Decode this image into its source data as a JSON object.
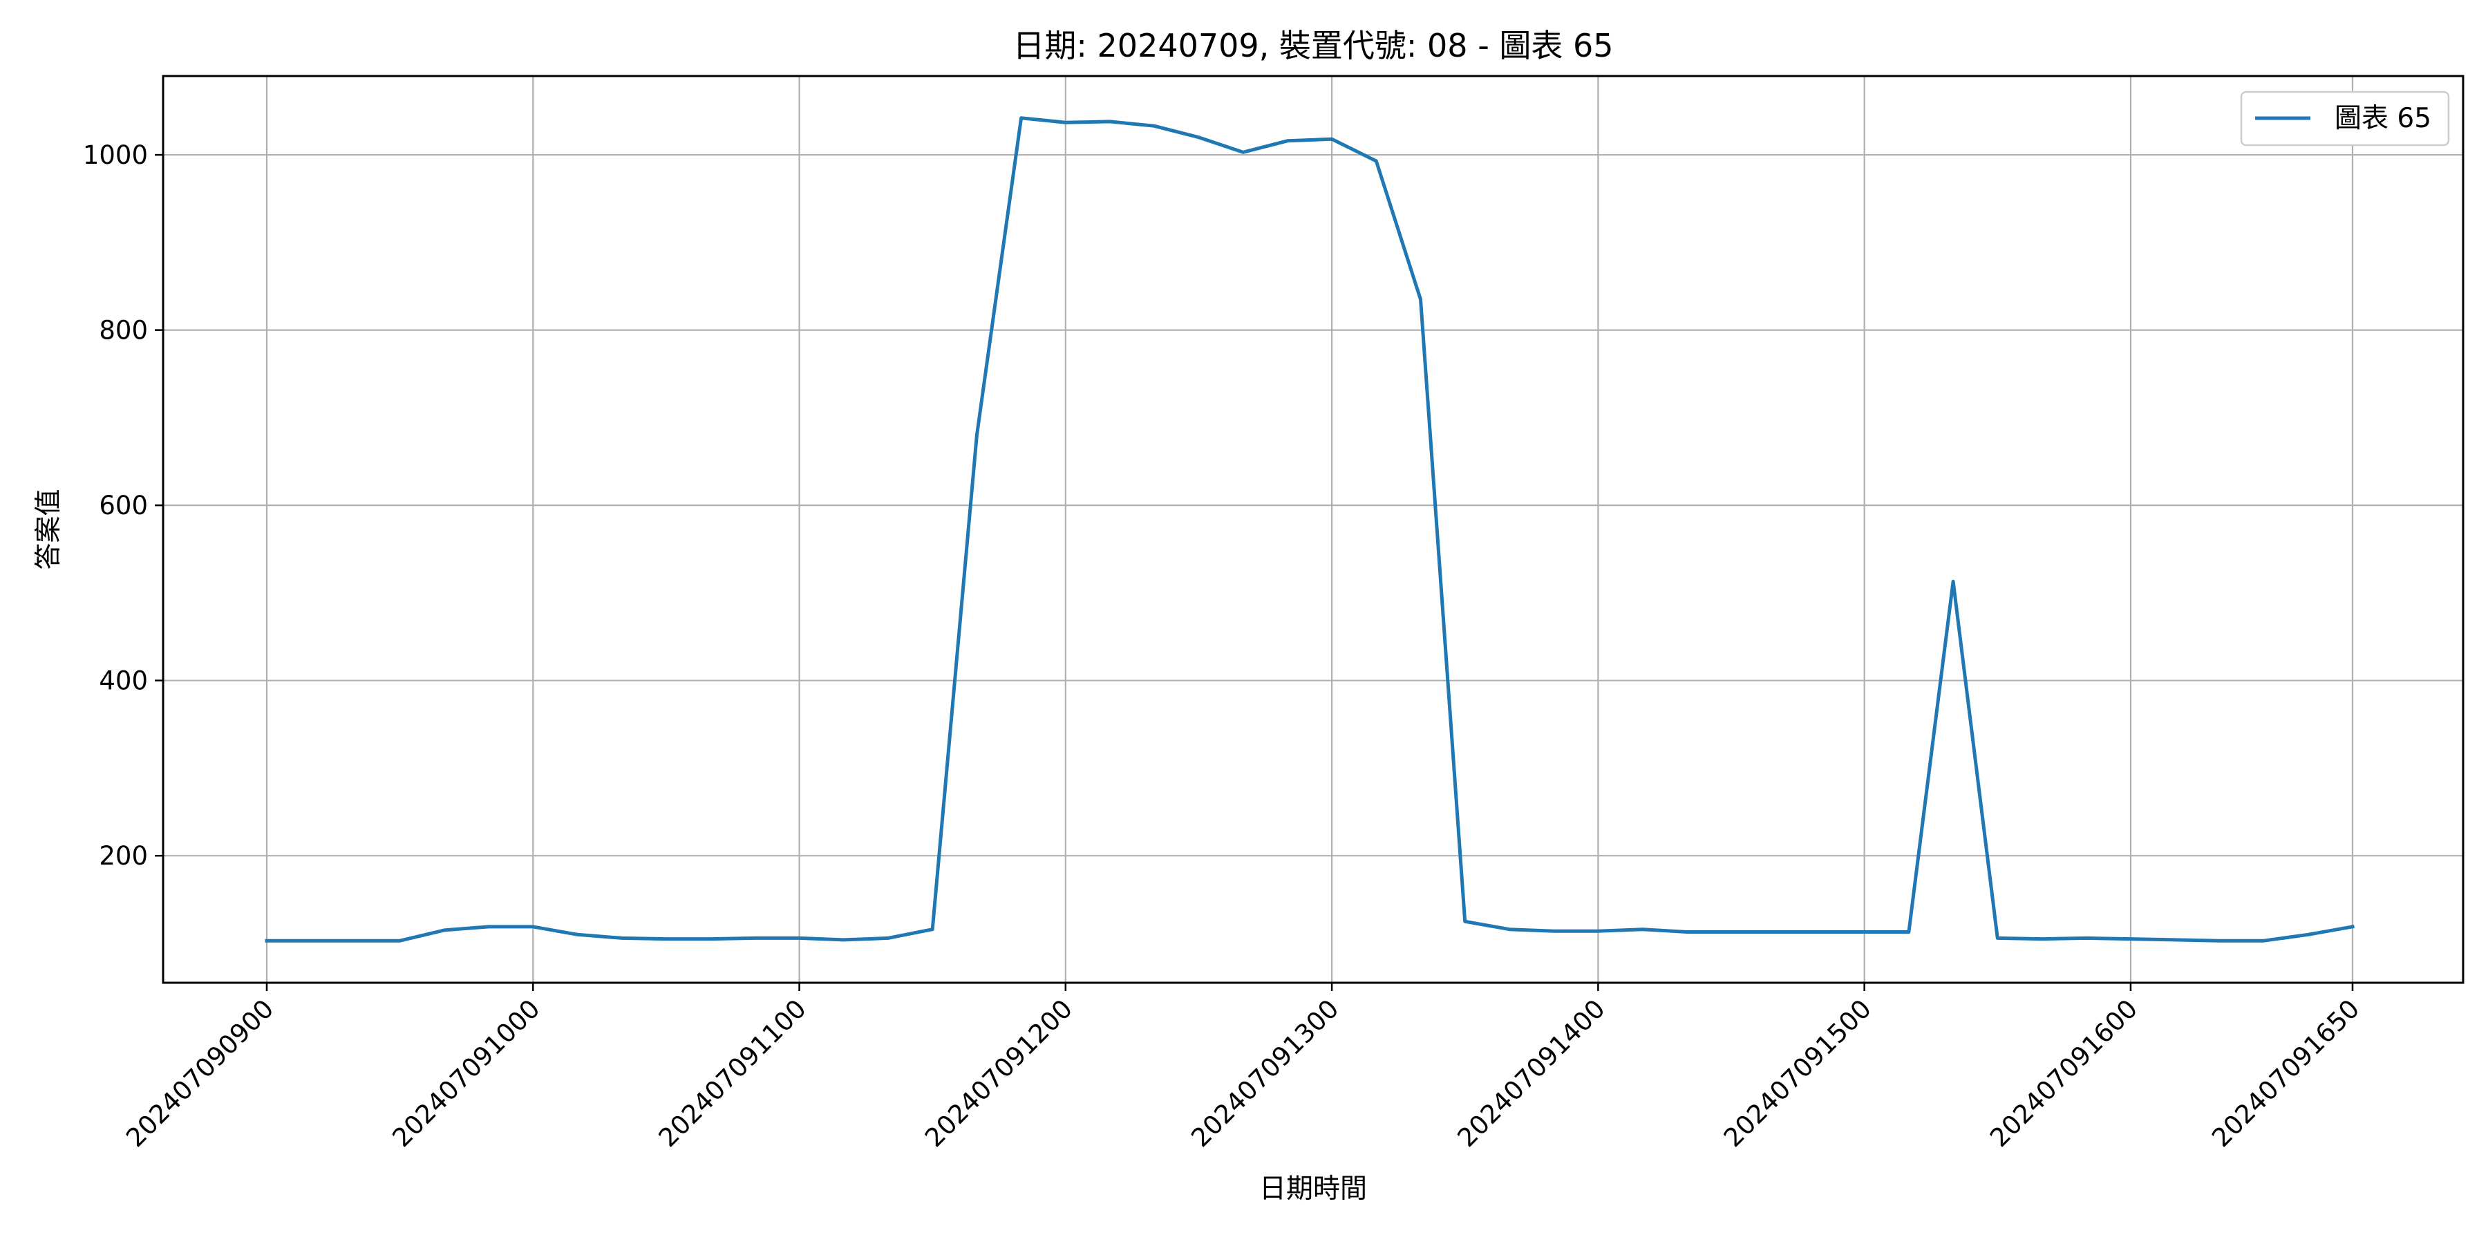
{
  "chart_data": {
    "type": "line",
    "title": "日期: 20240709, 裝置代號: 08 - 圖表 65",
    "xlabel": "日期時間",
    "ylabel": "答案值",
    "grid": true,
    "legend": "top-right",
    "x_tick_labels": [
      "202407090900",
      "202407091000",
      "202407091100",
      "202407091200",
      "202407091300",
      "202407091400",
      "202407091500",
      "202407091600",
      "202407091650"
    ],
    "y_ticks": [
      200,
      400,
      600,
      800,
      1000
    ],
    "ylim": [
      55,
      1090
    ],
    "series": [
      {
        "name": "圖表 65",
        "color": "#1f77b4",
        "x": [
          "202407090900",
          "202407090910",
          "202407090920",
          "202407090930",
          "202407090940",
          "202407090950",
          "202407091000",
          "202407091010",
          "202407091020",
          "202407091030",
          "202407091040",
          "202407091050",
          "202407091100",
          "202407091110",
          "202407091120",
          "202407091130",
          "202407091140",
          "202407091150",
          "202407091200",
          "202407091210",
          "202407091220",
          "202407091230",
          "202407091240",
          "202407091250",
          "202407091300",
          "202407091310",
          "202407091320",
          "202407091330",
          "202407091340",
          "202407091350",
          "202407091400",
          "202407091410",
          "202407091420",
          "202407091430",
          "202407091440",
          "202407091450",
          "202407091500",
          "202407091510",
          "202407091520",
          "202407091530",
          "202407091540",
          "202407091550",
          "202407091600",
          "202407091610",
          "202407091620",
          "202407091630",
          "202407091640",
          "202407091650"
        ],
        "values": [
          103,
          103,
          103,
          103,
          115,
          119,
          119,
          110,
          106,
          105,
          105,
          106,
          106,
          104,
          106,
          116,
          680,
          1042,
          1037,
          1038,
          1033,
          1020,
          1003,
          1016,
          1018,
          993,
          835,
          125,
          116,
          114,
          114,
          116,
          113,
          113,
          113,
          113,
          113,
          113,
          513,
          106,
          105,
          106,
          105,
          104,
          103,
          103,
          110,
          119
        ]
      }
    ]
  }
}
